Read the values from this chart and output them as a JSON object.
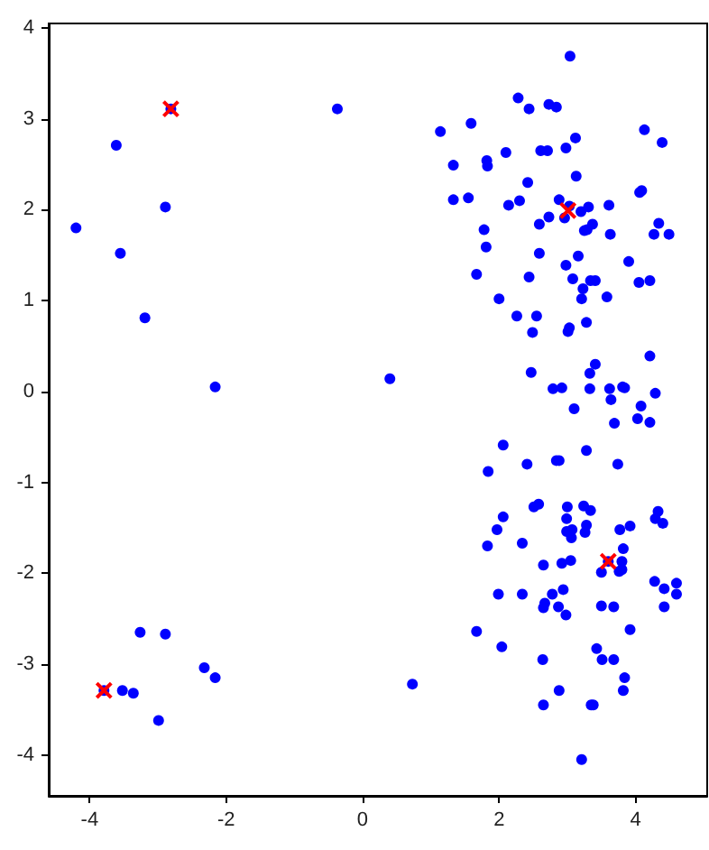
{
  "chart_data": {
    "type": "scatter",
    "xlim": [
      -4.6,
      5.05
    ],
    "ylim": [
      -4.45,
      4.05
    ],
    "xticks": [
      -4,
      -2,
      0,
      2,
      4
    ],
    "yticks": [
      -4,
      -3,
      -2,
      -1,
      0,
      1,
      2,
      3,
      4
    ],
    "grid": false,
    "series": [
      {
        "color": "#0000ff",
        "marker": "circle",
        "x": [
          -4.2,
          -3.61,
          -3.55,
          -2.89,
          -3.19,
          -2.16,
          -2.81,
          -0.37,
          0.4,
          -3.26,
          -2.89,
          -2.32,
          -2.16,
          -3.52,
          -3.36,
          -3.79,
          -2.99,
          0.73,
          3.04,
          2.28,
          2.44,
          2.73,
          2.84,
          1.14,
          1.59,
          4.13,
          4.39,
          1.33,
          1.82,
          1.83,
          2.1,
          2.61,
          2.71,
          2.98,
          3.12,
          3.13,
          2.42,
          1.33,
          1.55,
          2.14,
          2.3,
          2.88,
          2.73,
          2.59,
          2.96,
          3.03,
          3.2,
          3.31,
          3.37,
          3.25,
          3.29,
          3.61,
          3.63,
          4.06,
          4.09,
          4.34,
          4.27,
          4.49,
          1.78,
          1.81,
          2.59,
          3.16,
          2.98,
          3.08,
          3.34,
          3.41,
          3.9,
          4.05,
          4.21,
          1.67,
          2.44,
          3.23,
          3.21,
          3.58,
          2.0,
          2.26,
          2.55,
          2.49,
          3.01,
          3.03,
          3.28,
          4.21,
          2.47,
          3.41,
          3.33,
          2.79,
          2.92,
          3.33,
          3.62,
          3.81,
          3.84,
          3.64,
          4.29,
          3.1,
          4.08,
          3.69,
          4.03,
          4.21,
          2.06,
          2.84,
          2.88,
          3.28,
          1.84,
          2.41,
          3.74,
          2.51,
          2.58,
          3.0,
          3.24,
          3.34,
          2.06,
          1.97,
          2.99,
          2.99,
          3.07,
          3.06,
          3.26,
          3.28,
          3.77,
          3.92,
          4.33,
          4.29,
          4.4,
          1.83,
          2.34,
          2.65,
          2.92,
          3.05,
          3.82,
          3.8,
          3.5,
          3.6,
          3.76,
          3.8,
          4.28,
          4.42,
          4.6,
          4.6,
          1.99,
          2.34,
          2.78,
          2.94,
          2.67,
          2.65,
          2.87,
          2.98,
          3.5,
          3.68,
          4.42,
          1.67,
          3.92,
          2.04,
          3.43,
          3.51,
          3.68,
          2.64,
          3.84,
          3.82,
          2.88,
          2.65,
          3.35,
          3.38,
          3.21
        ],
        "values": [
          1.8,
          2.71,
          1.52,
          2.03,
          0.81,
          0.05,
          3.11,
          3.11,
          0.14,
          -2.65,
          -2.67,
          -3.04,
          -3.15,
          -3.29,
          -3.32,
          -3.29,
          -3.62,
          -3.22,
          3.69,
          3.23,
          3.11,
          3.16,
          3.13,
          2.86,
          2.95,
          2.88,
          2.74,
          2.49,
          2.54,
          2.48,
          2.63,
          2.65,
          2.65,
          2.68,
          2.79,
          2.37,
          2.3,
          2.11,
          2.13,
          2.05,
          2.1,
          2.11,
          1.92,
          1.84,
          1.91,
          2.04,
          1.98,
          2.03,
          1.84,
          1.77,
          1.78,
          2.05,
          1.73,
          2.19,
          2.21,
          1.85,
          1.73,
          1.73,
          1.78,
          1.59,
          1.52,
          1.49,
          1.39,
          1.24,
          1.22,
          1.22,
          1.43,
          1.2,
          1.22,
          1.29,
          1.26,
          1.13,
          1.02,
          1.04,
          1.02,
          0.83,
          0.83,
          0.65,
          0.66,
          0.7,
          0.76,
          0.39,
          0.21,
          0.3,
          0.2,
          0.03,
          0.04,
          0.03,
          0.03,
          0.05,
          0.04,
          -0.09,
          -0.02,
          -0.19,
          -0.16,
          -0.35,
          -0.3,
          -0.34,
          -0.59,
          -0.76,
          -0.76,
          -0.65,
          -0.88,
          -0.8,
          -0.8,
          -1.27,
          -1.24,
          -1.27,
          -1.26,
          -1.31,
          -1.38,
          -1.52,
          -1.4,
          -1.54,
          -1.52,
          -1.61,
          -1.55,
          -1.47,
          -1.52,
          -1.48,
          -1.32,
          -1.4,
          -1.45,
          -1.7,
          -1.67,
          -1.91,
          -1.89,
          -1.86,
          -1.73,
          -1.87,
          -1.99,
          -1.87,
          -1.98,
          -1.96,
          -2.09,
          -2.17,
          -2.11,
          -2.23,
          -2.23,
          -2.23,
          -2.23,
          -2.18,
          -2.33,
          -2.38,
          -2.37,
          -2.46,
          -2.36,
          -2.37,
          -2.37,
          -2.64,
          -2.62,
          -2.81,
          -2.83,
          -2.95,
          -2.95,
          -2.95,
          -3.15,
          -3.29,
          -3.29,
          -3.45,
          -3.45,
          -3.45,
          -4.05
        ]
      },
      {
        "color": "#ff0000",
        "marker": "cross",
        "x": [
          -2.81,
          -3.79,
          3.01,
          3.6
        ],
        "values": [
          3.11,
          -3.29,
          1.99,
          -1.87
        ]
      }
    ]
  }
}
